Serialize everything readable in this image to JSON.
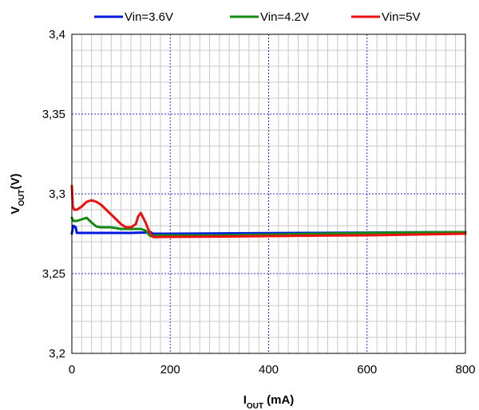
{
  "chart_data": {
    "type": "line",
    "title": "",
    "xlabel": {
      "main": "I",
      "sub": "OUT",
      "unit": " (mA)"
    },
    "ylabel": {
      "main": "V",
      "sub": "OUT",
      "unit": "(V)"
    },
    "xlim": [
      0,
      800
    ],
    "ylim": [
      3.2,
      3.4
    ],
    "x_ticks": [
      {
        "value": 0,
        "label": "0"
      },
      {
        "value": 200,
        "label": "200"
      },
      {
        "value": 400,
        "label": "400"
      },
      {
        "value": 600,
        "label": "600"
      },
      {
        "value": 800,
        "label": "800"
      }
    ],
    "y_ticks": [
      {
        "value": 3.2,
        "label": "3,2"
      },
      {
        "value": 3.25,
        "label": "3,25"
      },
      {
        "value": 3.3,
        "label": "3,3"
      },
      {
        "value": 3.35,
        "label": "3,35"
      },
      {
        "value": 3.4,
        "label": "3,4"
      }
    ],
    "x_minor_step": 20,
    "y_minor_step": 0.01,
    "grid": true,
    "legend_position": "top",
    "series": [
      {
        "name": "Vin=3.6V",
        "color": "#0018e0",
        "x": [
          0,
          3,
          8,
          10,
          20,
          40,
          60,
          80,
          100,
          120,
          140,
          150,
          160,
          165,
          170,
          200,
          300,
          400,
          500,
          600,
          700,
          800
        ],
        "y": [
          3.275,
          3.28,
          3.279,
          3.2755,
          3.2755,
          3.2755,
          3.2755,
          3.2755,
          3.2755,
          3.2755,
          3.2757,
          3.2757,
          3.276,
          3.275,
          3.275,
          3.275,
          3.2752,
          3.2754,
          3.2755,
          3.2757,
          3.2759,
          3.276
        ]
      },
      {
        "name": "Vin=4.2V",
        "color": "#138a13",
        "x": [
          0,
          3,
          10,
          20,
          30,
          40,
          50,
          60,
          80,
          100,
          120,
          140,
          150,
          155,
          160,
          165,
          170,
          200,
          300,
          400,
          500,
          600,
          700,
          800
        ],
        "y": [
          3.285,
          3.283,
          3.283,
          3.284,
          3.285,
          3.282,
          3.2795,
          3.279,
          3.279,
          3.278,
          3.278,
          3.278,
          3.277,
          3.275,
          3.2735,
          3.2738,
          3.274,
          3.274,
          3.274,
          3.2745,
          3.275,
          3.2755,
          3.2758,
          3.276
        ]
      },
      {
        "name": "Vin=5V",
        "color": "#ee1010",
        "x": [
          0,
          2,
          5,
          10,
          20,
          30,
          40,
          50,
          60,
          70,
          80,
          90,
          100,
          110,
          120,
          130,
          135,
          140,
          145,
          150,
          155,
          160,
          165,
          170,
          180,
          200,
          300,
          400,
          500,
          600,
          700,
          800
        ],
        "y": [
          3.305,
          3.292,
          3.29,
          3.29,
          3.292,
          3.295,
          3.296,
          3.295,
          3.293,
          3.29,
          3.287,
          3.284,
          3.281,
          3.279,
          3.279,
          3.281,
          3.286,
          3.288,
          3.285,
          3.282,
          3.278,
          3.275,
          3.273,
          3.2728,
          3.273,
          3.273,
          3.2732,
          3.2735,
          3.2738,
          3.274,
          3.2745,
          3.275
        ]
      }
    ]
  }
}
